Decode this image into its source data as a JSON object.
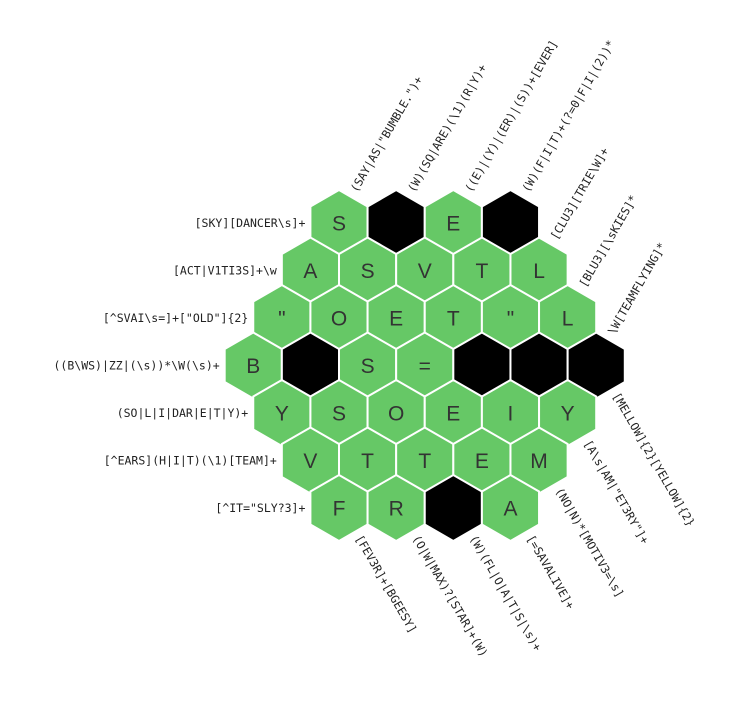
{
  "colors": {
    "filled": "#66c866",
    "blocked": "#000000",
    "border": "#ffffff",
    "text": "#333333"
  },
  "grid": {
    "rows": [
      [
        "S",
        null,
        "E",
        null
      ],
      [
        "A",
        "S",
        "V",
        "T",
        "L"
      ],
      [
        "\"",
        "O",
        "E",
        "T",
        "\"",
        "L"
      ],
      [
        "B",
        null,
        "S",
        "=",
        null,
        null,
        null
      ],
      [
        "Y",
        "S",
        "O",
        "E",
        "I",
        "Y"
      ],
      [
        "V",
        "T",
        "T",
        "E",
        "M"
      ],
      [
        "F",
        "R",
        null,
        "A"
      ]
    ]
  },
  "clues": {
    "left": [
      "[SKY][DANCER\\s]+",
      "[ACT|V1TI3S]+\\w",
      "[^SVAI\\s=]+[\"OLD\"]{2}",
      "((B\\WS)|ZZ|(\\s))*\\W(\\s)+",
      "(SO|L|I|DAR|E|T|Y)+",
      "[^EARS](H|I|T)(\\1)[TEAM]+",
      "[^IT=\"SLY?3]+"
    ],
    "top": [
      "(SAY|AS|\"BUMBLE.\")+",
      "(W)(SQ|ARE)(\\1)(R|Y)+",
      "((E)|(Y)|(ER)|(S))+[EVER]",
      "(W)(F|I|T)+(?=0|F|I|(2))*",
      "[CLU3][TRIE\\W]+",
      "[BLU3][\\sKIES]*",
      "\\W[TEAMFLYING]*"
    ],
    "bottom": [
      "[FEV3R]+[BGEESY]",
      "(O|W|MAX)?[STAR]+(W)",
      "(W)(FL|O|A|T|S|\\s)+",
      "[=SAVALIVE]+",
      "(NO|N)*[MOTIV3=\\s]",
      "[A\\s|AM|\"ET3RY\"]+",
      "[MELLOW]{2}[YELLOW]{2}"
    ]
  }
}
